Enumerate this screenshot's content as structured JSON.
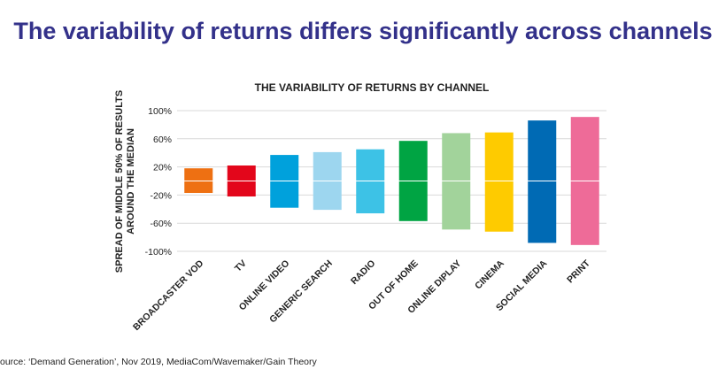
{
  "headline": "The variability of returns differs significantly across channels",
  "source": "ource: ‘Demand Generation’, Nov 2019, MediaCom/Wavemaker/Gain Theory",
  "chart_data": {
    "type": "bar",
    "title": "THE VARIABILITY OF RETURNS BY CHANNEL",
    "ylabel_lines": [
      "SPREAD OF MIDDLE 50% OF RESULTS",
      "AROUND THE MEDIAN"
    ],
    "ylim": [
      -100,
      100
    ],
    "yticks": [
      100,
      60,
      20,
      -20,
      -60,
      -100
    ],
    "ytick_labels": [
      "100%",
      "60%",
      "20%",
      "-20%",
      "-60%",
      "-100%"
    ],
    "categories": [
      "BROADCASTER VOD",
      "TV",
      "ONLINE VIDEO",
      "GENERIC SEARCH",
      "RADIO",
      "OUT OF HOME",
      "ONLINE DIPLAY",
      "CINEMA",
      "SOCIAL MEDIA",
      "PRINT"
    ],
    "high": [
      18,
      22,
      37,
      41,
      45,
      57,
      68,
      69,
      86,
      91
    ],
    "low": [
      -17,
      -22,
      -38,
      -41,
      -46,
      -57,
      -69,
      -72,
      -88,
      -91
    ],
    "colors": [
      "#ee7012",
      "#e3061b",
      "#00a1dc",
      "#9dd6ef",
      "#3dc2e6",
      "#00a443",
      "#a2d39b",
      "#fecb00",
      "#006ab4",
      "#ee6b98"
    ],
    "grid": true
  }
}
